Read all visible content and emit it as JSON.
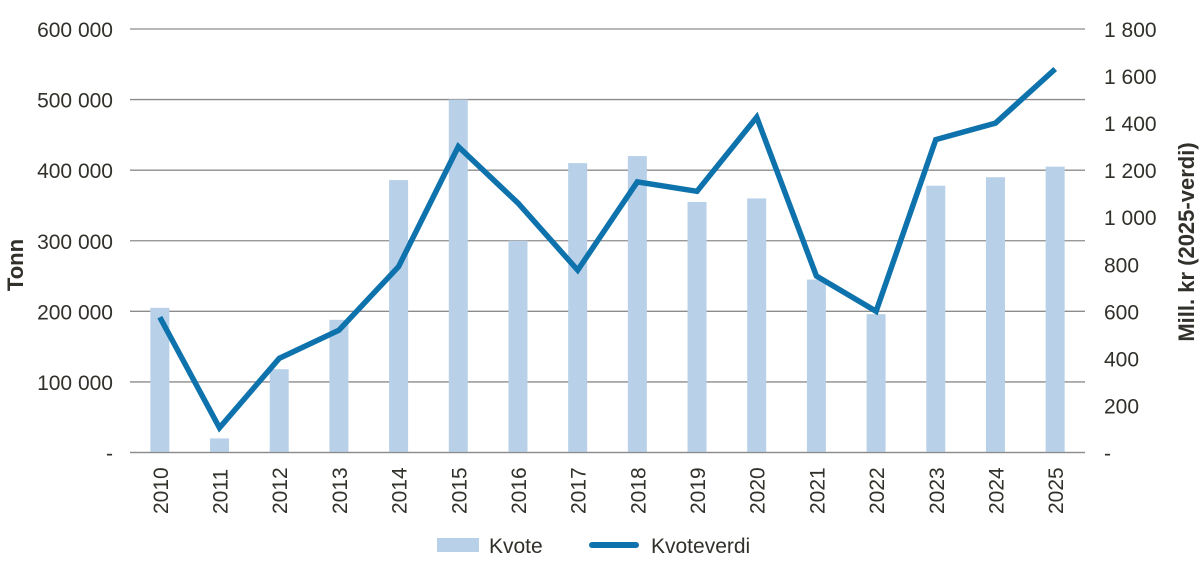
{
  "chart_data": {
    "type": "bar+line combo",
    "categories": [
      "2010",
      "2011",
      "2012",
      "2013",
      "2014",
      "2015",
      "2016",
      "2017",
      "2018",
      "2019",
      "2020",
      "2021",
      "2022",
      "2023",
      "2024",
      "2025"
    ],
    "series": [
      {
        "name": "Kvote",
        "type": "bar",
        "axis": "left",
        "values": [
          205000,
          20000,
          118000,
          188000,
          386000,
          500000,
          300000,
          410000,
          420000,
          355000,
          360000,
          245000,
          196000,
          378000,
          390000,
          405000
        ]
      },
      {
        "name": "Kvoteverdi",
        "type": "line",
        "axis": "right",
        "values": [
          575,
          105,
          400,
          520,
          790,
          1300,
          1060,
          775,
          1150,
          1110,
          1425,
          750,
          600,
          1330,
          1400,
          1630
        ]
      }
    ],
    "left_axis": {
      "title": "Tonn",
      "min": 0,
      "max": 600000,
      "step": 100000,
      "tick_labels": [
        "-",
        "100 000",
        "200 000",
        "300 000",
        "400 000",
        "500 000",
        "600 000"
      ]
    },
    "right_axis": {
      "title": "Mill. kr (2025-verdi)",
      "min": 0,
      "max": 1800,
      "step": 200,
      "tick_labels": [
        "-",
        "200",
        "400",
        "600",
        "800",
        "1 000",
        "1 200",
        "1 400",
        "1 600",
        "1 800"
      ]
    },
    "legend": [
      {
        "label": "Kvote",
        "type": "bar"
      },
      {
        "label": "Kvoteverdi",
        "type": "line"
      }
    ],
    "grid": "horizontal",
    "legend_position": "bottom-center",
    "colors": {
      "bar": "#b9d1e8",
      "line": "#0e72ac",
      "grid": "#8c8c8c",
      "text": "#32302a"
    }
  }
}
